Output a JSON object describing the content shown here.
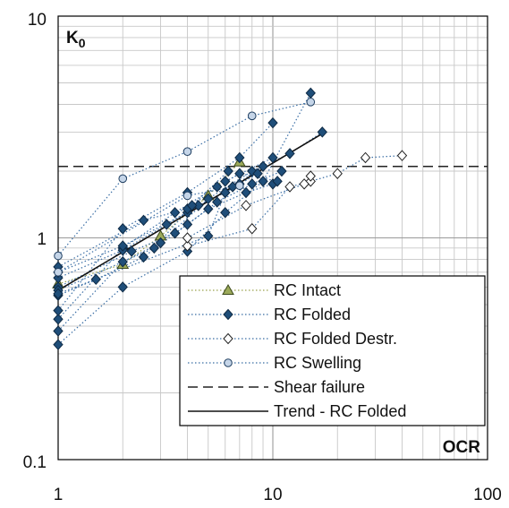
{
  "chart_data": {
    "type": "scatter",
    "xlabel": "OCR",
    "ylabel_main": "K",
    "ylabel_sub": "0",
    "x_scale": "log",
    "y_scale": "log",
    "xlim": [
      1,
      100
    ],
    "ylim": [
      0.1,
      10
    ],
    "x_ticks": [
      "1",
      "10",
      "100"
    ],
    "y_ticks": [
      "10",
      "1",
      "0.1"
    ],
    "grid": true,
    "legend_position": "bottom-right",
    "legend": [
      {
        "label": "RC Intact",
        "kind": "series",
        "series": 0
      },
      {
        "label": "RC Folded",
        "kind": "series",
        "series": 1
      },
      {
        "label": "RC Folded Destr.",
        "kind": "series",
        "series": 2
      },
      {
        "label": "RC Swelling",
        "kind": "series",
        "series": 3
      },
      {
        "label": "Shear failure",
        "kind": "hline"
      },
      {
        "label": "Trend - RC Folded",
        "kind": "trend"
      }
    ],
    "series": [
      {
        "name": "RC Intact",
        "marker": "triangle",
        "fill": "#9caa5a",
        "stroke": "#3d4a1c",
        "line_color": "#9aa24e",
        "curves": [
          [
            [
              1,
              0.62
            ],
            [
              2,
              0.76
            ],
            [
              3,
              1.02
            ],
            [
              5,
              1.55
            ],
            [
              7,
              2.2
            ]
          ]
        ]
      },
      {
        "name": "RC Folded",
        "marker": "diamond",
        "fill": "#1f4e79",
        "stroke": "#0f2a44",
        "line_color": "#3a6ea5",
        "curves": [
          [
            [
              1,
              0.33
            ],
            [
              2,
              0.6
            ],
            [
              4,
              0.87
            ],
            [
              6,
              1.3
            ],
            [
              9,
              1.8
            ],
            [
              15,
              4.5
            ]
          ],
          [
            [
              1,
              0.38
            ],
            [
              2,
              0.78
            ],
            [
              3,
              0.95
            ],
            [
              5,
              1.5
            ],
            [
              8,
              2.0
            ],
            [
              12,
              2.4
            ],
            [
              17,
              3.0
            ]
          ],
          [
            [
              1,
              0.43
            ],
            [
              2,
              0.9
            ],
            [
              3.5,
              1.3
            ],
            [
              6,
              1.8
            ],
            [
              10,
              2.3
            ]
          ],
          [
            [
              1,
              0.47
            ],
            [
              2,
              1.1
            ],
            [
              4,
              1.6
            ],
            [
              7,
              2.3
            ],
            [
              10,
              3.3
            ]
          ],
          [
            [
              1,
              0.55
            ],
            [
              1.5,
              0.65
            ],
            [
              2.5,
              0.82
            ],
            [
              4,
              1.15
            ],
            [
              5.5,
              1.45
            ],
            [
              8,
              1.75
            ],
            [
              11,
              2.0
            ]
          ],
          [
            [
              1,
              0.6
            ],
            [
              2.2,
              0.87
            ],
            [
              3.5,
              1.05
            ],
            [
              5,
              1.35
            ],
            [
              7.5,
              1.6
            ],
            [
              10,
              1.75
            ]
          ],
          [
            [
              1,
              0.66
            ],
            [
              2,
              0.88
            ],
            [
              3.2,
              1.15
            ],
            [
              4.5,
              1.4
            ],
            [
              6,
              1.6
            ],
            [
              8.5,
              1.95
            ]
          ],
          [
            [
              1,
              0.7
            ],
            [
              2,
              0.92
            ],
            [
              4,
              1.3
            ],
            [
              6.5,
              1.7
            ],
            [
              9,
              2.1
            ]
          ],
          [
            [
              1,
              0.74
            ],
            [
              2.5,
              1.2
            ],
            [
              4,
              1.35
            ],
            [
              5.5,
              1.7
            ],
            [
              7,
              1.95
            ],
            [
              10.5,
              1.8
            ]
          ],
          [
            [
              1,
              0.58
            ],
            [
              2.8,
              0.9
            ],
            [
              4.2,
              1.4
            ],
            [
              6.2,
              2.0
            ]
          ],
          [
            [
              1,
              0.56
            ],
            [
              5,
              1.02
            ],
            [
              6,
              1.6
            ],
            [
              7,
              1.75
            ]
          ]
        ]
      },
      {
        "name": "RC Folded Destr.",
        "marker": "diamond",
        "fill": "#ffffff",
        "stroke": "#222222",
        "line_color": "#3a6ea5",
        "curves": [
          [
            [
              4,
              0.92
            ],
            [
              8,
              1.1
            ],
            [
              12,
              1.7
            ],
            [
              15,
              1.8
            ],
            [
              20,
              1.95
            ],
            [
              27,
              2.3
            ],
            [
              40,
              2.35
            ]
          ],
          [
            [
              4,
              1.0
            ],
            [
              7.5,
              1.4
            ],
            [
              14,
              1.75
            ],
            [
              15,
              1.9
            ]
          ]
        ]
      },
      {
        "name": "RC Swelling",
        "marker": "circle",
        "fill": "#c5d5e8",
        "stroke": "#1f3e60",
        "line_color": "#3a6ea5",
        "curves": [
          [
            [
              1,
              0.83
            ],
            [
              2,
              1.85
            ],
            [
              4,
              2.45
            ],
            [
              8,
              3.55
            ],
            [
              15,
              4.1
            ]
          ],
          [
            [
              1,
              0.7
            ],
            [
              4,
              1.55
            ],
            [
              7,
              1.72
            ]
          ]
        ]
      }
    ],
    "shear_failure_y": 2.1,
    "trend": {
      "x0": 1,
      "y0": 0.58,
      "x1": 17,
      "y1": 2.95
    }
  }
}
